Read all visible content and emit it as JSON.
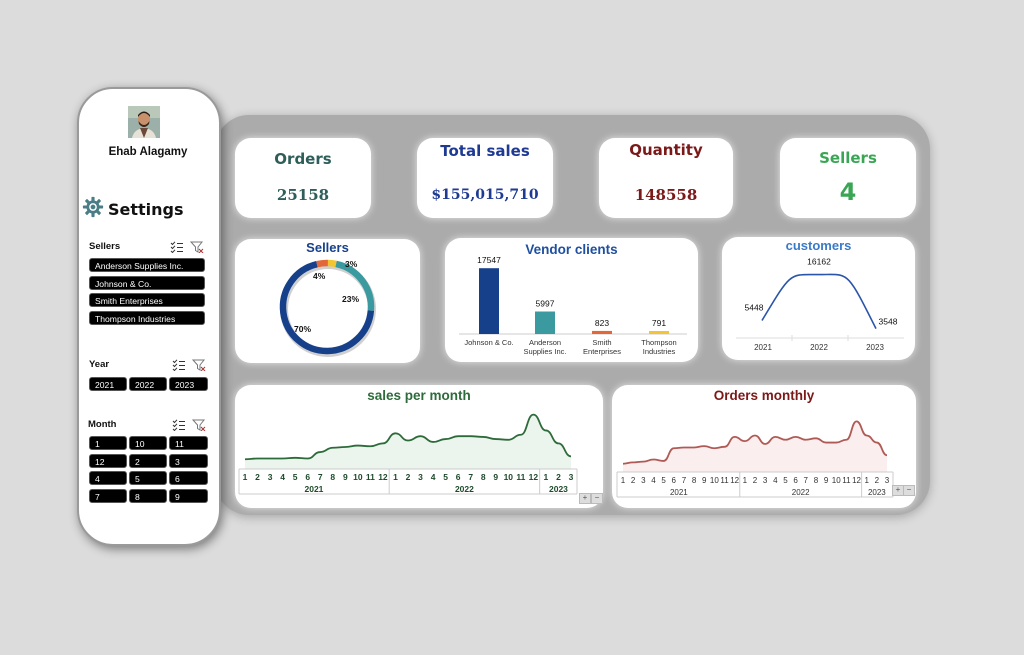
{
  "user": {
    "name": "Ehab Alagamy"
  },
  "settings": {
    "title": "Settings"
  },
  "slicers": {
    "sellers": {
      "title": "Sellers",
      "items": [
        "Anderson Supplies Inc.",
        "Johnson & Co.",
        "Smith Enterprises",
        "Thompson Industries"
      ]
    },
    "year": {
      "title": "Year",
      "items": [
        "2021",
        "2022",
        "2023"
      ]
    },
    "month": {
      "title": "Month",
      "items": [
        "1",
        "10",
        "11",
        "12",
        "2",
        "3",
        "4",
        "5",
        "6",
        "7",
        "8",
        "9"
      ]
    }
  },
  "kpis": {
    "orders": {
      "label": "Orders",
      "value": "25158"
    },
    "total_sales": {
      "label": "Total sales",
      "value": "$155,015,710"
    },
    "quantity": {
      "label": "Quantity",
      "value": "148558"
    },
    "sellers": {
      "label": "Sellers",
      "value": "4"
    }
  },
  "colors": {
    "orders": "#2e5e5a",
    "total_sales": "#1f3a93",
    "quantity": "#7b1818",
    "sellers_kpi": "#3aa655",
    "navy": "#17408b",
    "teal": "#3a9aa0",
    "orange": "#e2683a",
    "yellow": "#f2c531",
    "green_line": "#2e6b3a",
    "red_line": "#b05a55"
  },
  "chart_data": [
    {
      "type": "pie",
      "title": "Sellers",
      "labels": [
        "70%",
        "23%",
        "4%",
        "3%"
      ],
      "values": [
        70,
        23,
        4,
        3
      ]
    },
    {
      "type": "bar",
      "title": "Vendor clients",
      "categories": [
        "Johnson & Co.",
        "Anderson Supplies Inc.",
        "Smith Enterprises",
        "Thompson Industries"
      ],
      "values": [
        17547,
        5997,
        823,
        791
      ]
    },
    {
      "type": "line",
      "title": "customers",
      "x": [
        "2021",
        "2022",
        "2023"
      ],
      "values": [
        5448,
        16162,
        3548
      ]
    },
    {
      "type": "area",
      "title": "sales per month",
      "months": [
        "1",
        "2",
        "3",
        "4",
        "5",
        "6",
        "7",
        "8",
        "9",
        "10",
        "11",
        "12",
        "1",
        "2",
        "3",
        "4",
        "5",
        "6",
        "7",
        "8",
        "9",
        "10",
        "11",
        "12",
        "1",
        "2",
        "3"
      ],
      "years": [
        "2021",
        "2022",
        "2023"
      ],
      "values": [
        8,
        9,
        9,
        9,
        10,
        9,
        18,
        24,
        25,
        27,
        26,
        30,
        44,
        34,
        40,
        32,
        36,
        40,
        40,
        39,
        36,
        35,
        42,
        70,
        48,
        30,
        12
      ]
    },
    {
      "type": "area",
      "title": "Orders monthly",
      "months": [
        "1",
        "2",
        "3",
        "4",
        "5",
        "6",
        "7",
        "8",
        "9",
        "10",
        "11",
        "12",
        "1",
        "2",
        "3",
        "4",
        "5",
        "6",
        "7",
        "8",
        "9",
        "10",
        "11",
        "12",
        "1",
        "2",
        "3"
      ],
      "years": [
        "2021",
        "2022",
        "2023"
      ],
      "values": [
        6,
        8,
        9,
        12,
        10,
        28,
        29,
        29,
        31,
        28,
        30,
        44,
        38,
        46,
        34,
        44,
        40,
        44,
        40,
        42,
        36,
        36,
        40,
        66,
        46,
        36,
        18
      ]
    }
  ]
}
